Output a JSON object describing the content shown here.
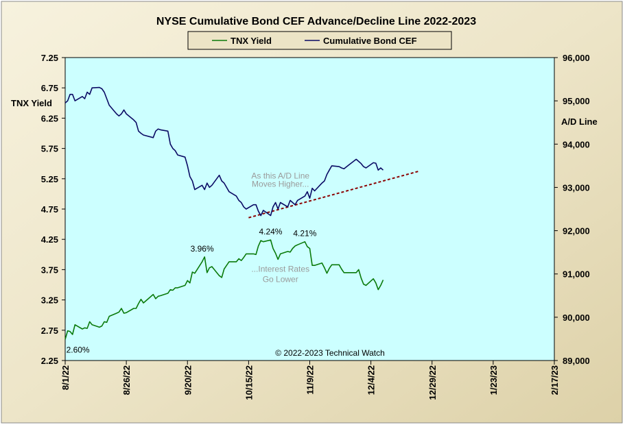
{
  "chart_data": {
    "type": "line",
    "title": "NYSE Cumulative  Bond CEF Advance/Decline  Line  2022-2023",
    "legend": {
      "placement": "top-center",
      "entries": [
        "TNX Yield",
        "Cumulative Bond CEF"
      ]
    },
    "y_left": {
      "label": "TNX  Yield",
      "range": [
        2.25,
        7.25
      ],
      "ticks": [
        "2.25",
        "2.75",
        "3.25",
        "3.75",
        "4.25",
        "4.75",
        "5.25",
        "5.75",
        "6.25",
        "6.75",
        "7.25"
      ]
    },
    "y_right": {
      "label": "A/D Line",
      "range": [
        89000,
        96000
      ],
      "ticks": [
        "89,000",
        "90,000",
        "91,000",
        "92,000",
        "93,000",
        "94,000",
        "95,000",
        "96,000"
      ]
    },
    "x_axis": {
      "range": [
        "2022-08-01",
        "2023-02-17"
      ],
      "ticks": [
        "8/1/22",
        "8/26/22",
        "9/20/22",
        "10/15/22",
        "11/9/22",
        "12/4/22",
        "12/29/22",
        "1/23/23",
        "2/17/23"
      ]
    },
    "grid": false,
    "series": [
      {
        "name": "TNX Yield",
        "axis": "left",
        "color": "#0a7a0a",
        "points": [
          [
            "2022-08-01",
            2.6
          ],
          [
            "2022-08-02",
            2.74
          ],
          [
            "2022-08-03",
            2.73
          ],
          [
            "2022-08-04",
            2.68
          ],
          [
            "2022-08-05",
            2.84
          ],
          [
            "2022-08-08",
            2.77
          ],
          [
            "2022-08-09",
            2.79
          ],
          [
            "2022-08-10",
            2.78
          ],
          [
            "2022-08-11",
            2.89
          ],
          [
            "2022-08-12",
            2.84
          ],
          [
            "2022-08-15",
            2.8
          ],
          [
            "2022-08-16",
            2.82
          ],
          [
            "2022-08-17",
            2.89
          ],
          [
            "2022-08-18",
            2.88
          ],
          [
            "2022-08-19",
            2.98
          ],
          [
            "2022-08-22",
            3.03
          ],
          [
            "2022-08-23",
            3.05
          ],
          [
            "2022-08-24",
            3.11
          ],
          [
            "2022-08-25",
            3.03
          ],
          [
            "2022-08-26",
            3.04
          ],
          [
            "2022-08-29",
            3.11
          ],
          [
            "2022-08-30",
            3.11
          ],
          [
            "2022-08-31",
            3.19
          ],
          [
            "2022-09-01",
            3.26
          ],
          [
            "2022-09-02",
            3.2
          ],
          [
            "2022-09-06",
            3.34
          ],
          [
            "2022-09-07",
            3.27
          ],
          [
            "2022-09-08",
            3.31
          ],
          [
            "2022-09-09",
            3.32
          ],
          [
            "2022-09-12",
            3.36
          ],
          [
            "2022-09-13",
            3.42
          ],
          [
            "2022-09-14",
            3.41
          ],
          [
            "2022-09-15",
            3.45
          ],
          [
            "2022-09-16",
            3.45
          ],
          [
            "2022-09-19",
            3.49
          ],
          [
            "2022-09-20",
            3.57
          ],
          [
            "2022-09-21",
            3.53
          ],
          [
            "2022-09-22",
            3.71
          ],
          [
            "2022-09-23",
            3.69
          ],
          [
            "2022-09-26",
            3.88
          ],
          [
            "2022-09-27",
            3.96
          ],
          [
            "2022-09-28",
            3.7
          ],
          [
            "2022-09-29",
            3.78
          ],
          [
            "2022-09-30",
            3.8
          ],
          [
            "2022-10-03",
            3.65
          ],
          [
            "2022-10-04",
            3.62
          ],
          [
            "2022-10-05",
            3.76
          ],
          [
            "2022-10-06",
            3.82
          ],
          [
            "2022-10-07",
            3.88
          ],
          [
            "2022-10-10",
            3.88
          ],
          [
            "2022-10-11",
            3.93
          ],
          [
            "2022-10-12",
            3.9
          ],
          [
            "2022-10-13",
            3.95
          ],
          [
            "2022-10-14",
            4.01
          ],
          [
            "2022-10-17",
            4.01
          ],
          [
            "2022-10-18",
            4.0
          ],
          [
            "2022-10-19",
            4.14
          ],
          [
            "2022-10-20",
            4.23
          ],
          [
            "2022-10-21",
            4.21
          ],
          [
            "2022-10-24",
            4.24
          ],
          [
            "2022-10-25",
            4.1
          ],
          [
            "2022-10-26",
            4.02
          ],
          [
            "2022-10-27",
            3.92
          ],
          [
            "2022-10-28",
            4.01
          ],
          [
            "2022-10-31",
            4.05
          ],
          [
            "2022-11-01",
            4.04
          ],
          [
            "2022-11-02",
            4.1
          ],
          [
            "2022-11-03",
            4.14
          ],
          [
            "2022-11-04",
            4.16
          ],
          [
            "2022-11-07",
            4.21
          ],
          [
            "2022-11-08",
            4.13
          ],
          [
            "2022-11-09",
            4.1
          ],
          [
            "2022-11-10",
            3.82
          ],
          [
            "2022-11-11",
            3.82
          ],
          [
            "2022-11-14",
            3.86
          ],
          [
            "2022-11-15",
            3.78
          ],
          [
            "2022-11-16",
            3.69
          ],
          [
            "2022-11-17",
            3.77
          ],
          [
            "2022-11-18",
            3.83
          ],
          [
            "2022-11-21",
            3.83
          ],
          [
            "2022-11-22",
            3.76
          ],
          [
            "2022-11-23",
            3.7
          ],
          [
            "2022-11-25",
            3.7
          ],
          [
            "2022-11-28",
            3.7
          ],
          [
            "2022-11-29",
            3.75
          ],
          [
            "2022-11-30",
            3.61
          ],
          [
            "2022-12-01",
            3.51
          ],
          [
            "2022-12-02",
            3.49
          ],
          [
            "2022-12-05",
            3.6
          ],
          [
            "2022-12-06",
            3.53
          ],
          [
            "2022-12-07",
            3.42
          ],
          [
            "2022-12-08",
            3.49
          ],
          [
            "2022-12-09",
            3.58
          ]
        ]
      },
      {
        "name": "Cumulative Bond CEF",
        "axis": "right",
        "color": "#0a0a64",
        "points": [
          [
            "2022-08-01",
            94950
          ],
          [
            "2022-08-02",
            95000
          ],
          [
            "2022-08-03",
            95150
          ],
          [
            "2022-08-04",
            95150
          ],
          [
            "2022-08-05",
            95000
          ],
          [
            "2022-08-08",
            95100
          ],
          [
            "2022-08-09",
            95050
          ],
          [
            "2022-08-10",
            95200
          ],
          [
            "2022-08-11",
            95150
          ],
          [
            "2022-08-12",
            95300
          ],
          [
            "2022-08-15",
            95310
          ],
          [
            "2022-08-16",
            95280
          ],
          [
            "2022-08-17",
            95200
          ],
          [
            "2022-08-18",
            95050
          ],
          [
            "2022-08-19",
            94900
          ],
          [
            "2022-08-22",
            94700
          ],
          [
            "2022-08-23",
            94650
          ],
          [
            "2022-08-24",
            94700
          ],
          [
            "2022-08-25",
            94790
          ],
          [
            "2022-08-26",
            94700
          ],
          [
            "2022-08-29",
            94560
          ],
          [
            "2022-08-30",
            94500
          ],
          [
            "2022-08-31",
            94300
          ],
          [
            "2022-09-01",
            94250
          ],
          [
            "2022-09-02",
            94210
          ],
          [
            "2022-09-06",
            94150
          ],
          [
            "2022-09-07",
            94300
          ],
          [
            "2022-09-08",
            94350
          ],
          [
            "2022-09-09",
            94330
          ],
          [
            "2022-09-12",
            94300
          ],
          [
            "2022-09-13",
            94000
          ],
          [
            "2022-09-14",
            93900
          ],
          [
            "2022-09-15",
            93850
          ],
          [
            "2022-09-16",
            93750
          ],
          [
            "2022-09-19",
            93700
          ],
          [
            "2022-09-20",
            93500
          ],
          [
            "2022-09-21",
            93250
          ],
          [
            "2022-09-22",
            93150
          ],
          [
            "2022-09-23",
            92950
          ],
          [
            "2022-09-26",
            93050
          ],
          [
            "2022-09-27",
            92950
          ],
          [
            "2022-09-28",
            93100
          ],
          [
            "2022-09-29",
            93000
          ],
          [
            "2022-09-30",
            93050
          ],
          [
            "2022-10-03",
            93280
          ],
          [
            "2022-10-04",
            93150
          ],
          [
            "2022-10-05",
            93100
          ],
          [
            "2022-10-06",
            93000
          ],
          [
            "2022-10-07",
            92900
          ],
          [
            "2022-10-10",
            92800
          ],
          [
            "2022-10-11",
            92700
          ],
          [
            "2022-10-12",
            92650
          ],
          [
            "2022-10-13",
            92550
          ],
          [
            "2022-10-14",
            92500
          ],
          [
            "2022-10-17",
            92600
          ],
          [
            "2022-10-18",
            92600
          ],
          [
            "2022-10-19",
            92450
          ],
          [
            "2022-10-20",
            92350
          ],
          [
            "2022-10-21",
            92470
          ],
          [
            "2022-10-24",
            92350
          ],
          [
            "2022-10-25",
            92550
          ],
          [
            "2022-10-26",
            92650
          ],
          [
            "2022-10-27",
            92500
          ],
          [
            "2022-10-28",
            92650
          ],
          [
            "2022-10-31",
            92550
          ],
          [
            "2022-11-01",
            92700
          ],
          [
            "2022-11-02",
            92650
          ],
          [
            "2022-11-03",
            92600
          ],
          [
            "2022-11-04",
            92700
          ],
          [
            "2022-11-07",
            92800
          ],
          [
            "2022-11-08",
            92900
          ],
          [
            "2022-11-09",
            92750
          ],
          [
            "2022-11-10",
            92980
          ],
          [
            "2022-11-11",
            92920
          ],
          [
            "2022-11-14",
            93100
          ],
          [
            "2022-11-15",
            93150
          ],
          [
            "2022-11-16",
            93300
          ],
          [
            "2022-11-17",
            93400
          ],
          [
            "2022-11-18",
            93500
          ],
          [
            "2022-11-21",
            93480
          ],
          [
            "2022-11-22",
            93450
          ],
          [
            "2022-11-23",
            93430
          ],
          [
            "2022-11-25",
            93520
          ],
          [
            "2022-11-28",
            93650
          ],
          [
            "2022-11-29",
            93600
          ],
          [
            "2022-11-30",
            93550
          ],
          [
            "2022-12-01",
            93480
          ],
          [
            "2022-12-02",
            93450
          ],
          [
            "2022-12-05",
            93570
          ],
          [
            "2022-12-06",
            93560
          ],
          [
            "2022-12-07",
            93400
          ],
          [
            "2022-12-08",
            93450
          ],
          [
            "2022-12-09",
            93400
          ]
        ]
      }
    ],
    "trendline": {
      "axis": "right",
      "style": "dashed",
      "color": "#8b0000",
      "from": [
        "2022-10-15",
        92300
      ],
      "to": [
        "2022-12-24",
        93380
      ]
    },
    "annotations": [
      {
        "id": "start",
        "text": "2.60%",
        "x": "2022-08-02",
        "axis": "left",
        "y": 2.4
      },
      {
        "id": "peak1",
        "text": "3.96%",
        "x": "2022-09-26",
        "axis": "left",
        "y": 3.96
      },
      {
        "id": "peak2",
        "text": "4.24%",
        "x": "2022-10-24",
        "axis": "left",
        "y": 4.24
      },
      {
        "id": "peak3",
        "text": "4.21%",
        "x": "2022-11-07",
        "axis": "left",
        "y": 4.21
      },
      {
        "id": "ad-note-1",
        "text": "As this A/D Line",
        "x": "2022-10-28",
        "axis": "right",
        "y": 93270,
        "color": "#9a9a9a"
      },
      {
        "id": "ad-note-2",
        "text": "Moves Higher...",
        "x": "2022-10-28",
        "axis": "right",
        "y": 93080,
        "color": "#9a9a9a"
      },
      {
        "id": "rate-note-1",
        "text": "...Interest Rates",
        "x": "2022-10-28",
        "axis": "left",
        "y": 3.76,
        "color": "#9a9a9a"
      },
      {
        "id": "rate-note-2",
        "text": "Go Lower",
        "x": "2022-10-28",
        "axis": "left",
        "y": 3.59,
        "color": "#9a9a9a"
      }
    ],
    "copyright": "© 2022-2023  Technical  Watch"
  },
  "colors": {
    "frame": "#ece4c6",
    "plot_background": "#ccffff",
    "legend_background": "#ece4c6"
  }
}
